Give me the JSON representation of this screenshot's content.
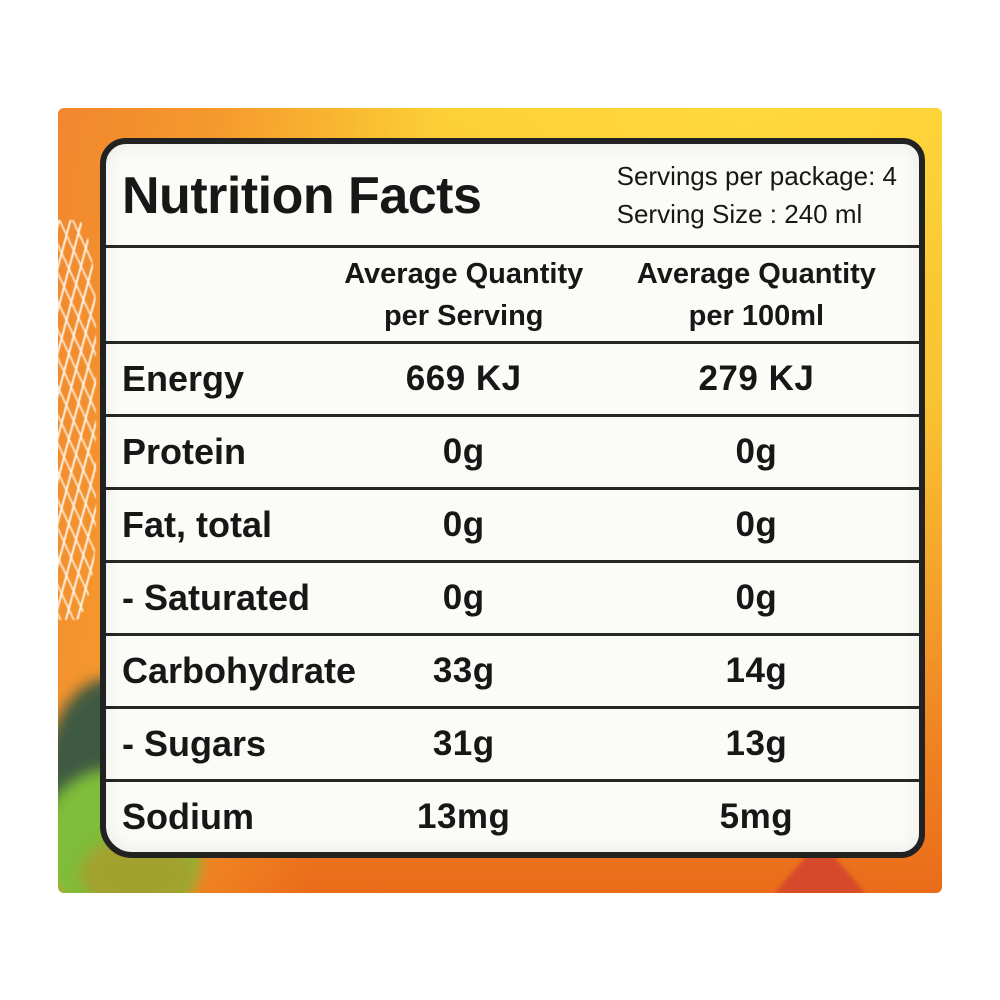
{
  "colors": {
    "photo_background": "#ffffff",
    "package_yellow": "#fcd136",
    "package_orange": "#f1862f",
    "package_deep_orange": "#ea6c1a",
    "leaf_green": "#7fbd3a",
    "leaf_dark_green": "#3f5a42",
    "leaf_olive": "#a3a12e",
    "artwork_red": "#d6492b",
    "label_background": "#fbfbf8",
    "label_border": "#222222",
    "text": "#171717"
  },
  "label": {
    "title": "Nutrition Facts",
    "servings_per_package": "Servings per package: 4",
    "serving_size": "Serving Size : 240 ml",
    "columns": [
      {
        "line1": "Average Quantity",
        "line2": "per Serving"
      },
      {
        "line1": "Average Quantity",
        "line2": "per 100ml"
      }
    ],
    "rows": [
      {
        "name": "Energy",
        "per_serving": "669 KJ",
        "per_100ml": "279 KJ"
      },
      {
        "name": "Protein",
        "per_serving": "0g",
        "per_100ml": "0g"
      },
      {
        "name": "Fat, total",
        "per_serving": "0g",
        "per_100ml": "0g"
      },
      {
        "name": "- Saturated",
        "per_serving": "0g",
        "per_100ml": "0g"
      },
      {
        "name": "Carbohydrate",
        "per_serving": "33g",
        "per_100ml": "14g"
      },
      {
        "name": "- Sugars",
        "per_serving": "31g",
        "per_100ml": "13g"
      },
      {
        "name": "Sodium",
        "per_serving": "13mg",
        "per_100ml": "5mg"
      }
    ]
  }
}
